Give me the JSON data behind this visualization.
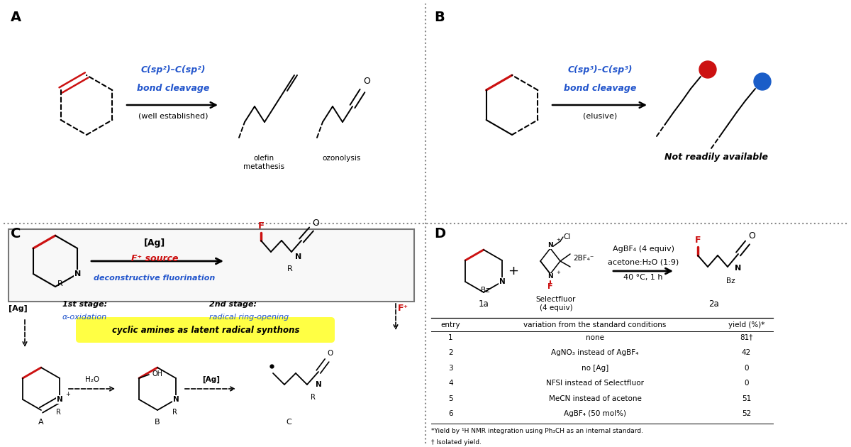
{
  "bg_color": "#ffffff",
  "blue_text": "#2255cc",
  "red_color": "#cc1111",
  "yellow_highlight": "#ffff44",
  "black": "#000000",
  "text_sp2": "C(sp²)–C(sp²)",
  "text_sp3": "C(sp³)–C(sp³)",
  "bond_cleavage": "bond cleavage",
  "well_established": "(well established)",
  "elusive": "(elusive)",
  "olefin_metathesis": "olefin\nmetathesis",
  "ozonolysis": "ozonolysis",
  "not_readily": "Not readily available",
  "cyclic_amines": "cyclic amines as latent radical synthons",
  "agbf4_cond": "AgBF₄ (4 equiv)",
  "solvent": "acetone:H₂O (1:9)",
  "temp": "40 °C, 1 h",
  "compound_1a": "1a",
  "compound_2a": "2a",
  "selectfluor_label": "Selectfluor\n(4 equiv)",
  "table_headers": [
    "entry",
    "variation from the standard conditions",
    "yield (%)"
  ],
  "table_rows": [
    [
      "1",
      "none",
      "81†"
    ],
    [
      "2",
      "AgNO₃ instead of AgBF₄",
      "42"
    ],
    [
      "3",
      "no [Ag]",
      "0"
    ],
    [
      "4",
      "NFSI instead of Selectfluor",
      "0"
    ],
    [
      "5",
      "MeCN instead of acetone",
      "51"
    ],
    [
      "6",
      "AgBF₄ (50 mol%)",
      "52"
    ]
  ],
  "footnote1": "*Yield by ¹H NMR integration using Ph₃CH as an internal standard.",
  "footnote2": "† Isolated yield."
}
